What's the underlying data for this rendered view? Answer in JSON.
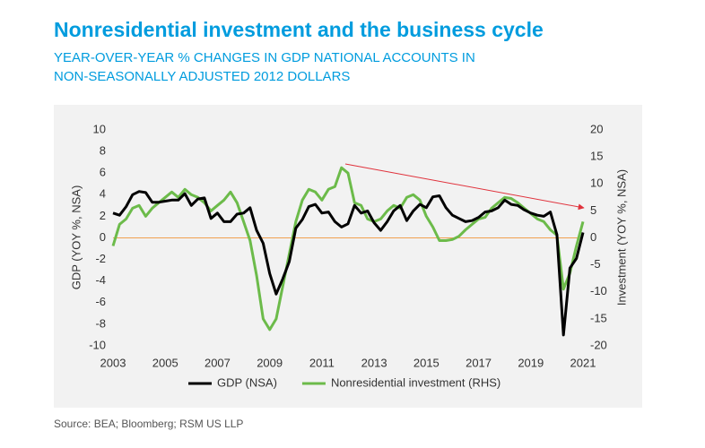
{
  "chart_data": {
    "type": "line",
    "title": "Nonresidential investment and the business cycle",
    "subtitle": [
      "YEAR-OVER-YEAR % CHANGES IN GDP NATIONAL ACCOUNTS IN",
      "NON-SEASONALLY ADJUSTED 2012 DOLLARS"
    ],
    "y_label": "GDP (YOY %, NSA)",
    "y2_label": "Investment (YOY %, NSA)",
    "source": "Source: BEA; Bloomberg; RSM US LLP",
    "x": [
      2003,
      2003.25,
      2003.5,
      2003.75,
      2004,
      2004.25,
      2004.5,
      2004.75,
      2005,
      2005.25,
      2005.5,
      2005.75,
      2006,
      2006.25,
      2006.5,
      2006.75,
      2007,
      2007.25,
      2007.5,
      2007.75,
      2008,
      2008.25,
      2008.5,
      2008.75,
      2009,
      2009.25,
      2009.5,
      2009.75,
      2010,
      2010.25,
      2010.5,
      2010.75,
      2011,
      2011.25,
      2011.5,
      2011.75,
      2012,
      2012.25,
      2012.5,
      2012.75,
      2013,
      2013.25,
      2013.5,
      2013.75,
      2014,
      2014.25,
      2014.5,
      2014.75,
      2015,
      2015.25,
      2015.5,
      2015.75,
      2016,
      2016.25,
      2016.5,
      2016.75,
      2017,
      2017.25,
      2017.5,
      2017.75,
      2018,
      2018.25,
      2018.5,
      2018.75,
      2019,
      2019.25,
      2019.5,
      2019.75,
      2020,
      2020.25,
      2020.5,
      2020.75,
      2021
    ],
    "xlim": [
      2003,
      2021
    ],
    "xticks": [
      2003,
      2005,
      2007,
      2009,
      2011,
      2013,
      2015,
      2017,
      2019,
      2021
    ],
    "ylim": [
      -10,
      10
    ],
    "yticks": [
      -10,
      -8,
      -6,
      -4,
      -2,
      0,
      2,
      4,
      6,
      8,
      10
    ],
    "y2lim": [
      -20,
      20
    ],
    "y2ticks": [
      -20,
      -15,
      -10,
      -5,
      0,
      5,
      10,
      15,
      20
    ],
    "series": [
      {
        "name": "GDP (NSA)",
        "color": "#000000",
        "values": [
          2.3,
          2.1,
          2.9,
          4.0,
          4.3,
          4.2,
          3.3,
          3.3,
          3.4,
          3.5,
          3.5,
          4.1,
          3.0,
          3.6,
          3.7,
          1.8,
          2.3,
          1.5,
          1.5,
          2.2,
          2.3,
          2.8,
          0.7,
          -0.5,
          -3.3,
          -5.2,
          -3.8,
          -2.2,
          0.9,
          1.7,
          2.9,
          3.1,
          2.3,
          2.4,
          1.5,
          1.0,
          1.3,
          3.0,
          2.3,
          2.5,
          1.4,
          0.7,
          1.5,
          2.5,
          3.0,
          1.6,
          2.5,
          3.1,
          2.8,
          3.8,
          3.9,
          2.8,
          2.1,
          1.8,
          1.5,
          1.6,
          1.9,
          2.4,
          2.5,
          2.8,
          3.5,
          3.1,
          3.0,
          2.6,
          2.3,
          2.1,
          2.0,
          2.4,
          0.3,
          -9.0,
          -2.8,
          -1.9,
          0.5
        ]
      },
      {
        "name": "Nonresidential investment (RHS)",
        "color": "#6cbb4a",
        "axis": "y2",
        "values": [
          -1.5,
          2.5,
          3.5,
          5.5,
          6.0,
          4.0,
          5.5,
          6.5,
          7.5,
          8.5,
          7.5,
          9.0,
          8.0,
          7.5,
          6.5,
          5.0,
          6.0,
          7.0,
          8.5,
          6.5,
          3.0,
          -0.5,
          -7.0,
          -15.0,
          -17.0,
          -15.0,
          -9.0,
          -3.0,
          3.0,
          7.0,
          9.0,
          8.5,
          7.0,
          9.0,
          9.5,
          13.0,
          12.0,
          6.5,
          6.0,
          3.5,
          3.0,
          3.5,
          5.0,
          6.0,
          5.5,
          7.5,
          8.0,
          7.0,
          4.0,
          2.0,
          -0.5,
          -0.5,
          -0.3,
          0.3,
          1.5,
          2.5,
          3.5,
          3.8,
          5.5,
          6.5,
          7.5,
          7.3,
          6.5,
          5.5,
          4.5,
          3.5,
          3.0,
          1.5,
          0.5,
          -9.5,
          -6.5,
          -1.5,
          3.0
        ]
      }
    ]
  }
}
